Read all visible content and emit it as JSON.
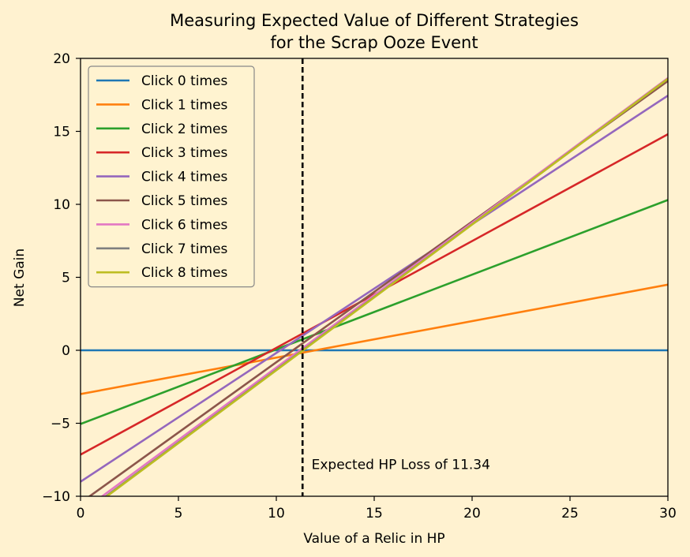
{
  "chart_data": {
    "type": "line",
    "title_line1": "Measuring Expected Value of Different Strategies",
    "title_line2": "for the Scrap Ooze Event",
    "xlabel": "Value of a Relic in HP",
    "ylabel": "Net Gain",
    "xlim": [
      0,
      30
    ],
    "ylim": [
      -10,
      20
    ],
    "xticks": [
      0,
      5,
      10,
      15,
      20,
      25,
      30
    ],
    "yticks": [
      -10,
      -5,
      0,
      5,
      10,
      15,
      20
    ],
    "xtick_labels": [
      "0",
      "5",
      "10",
      "15",
      "20",
      "25",
      "30"
    ],
    "ytick_labels": [
      "−10",
      "−5",
      "0",
      "5",
      "10",
      "15",
      "20"
    ],
    "grid": false,
    "legend_position": "upper-left",
    "series": [
      {
        "name": "Click 0 times",
        "color": "#1f77b4",
        "x": [
          0,
          30
        ],
        "y": [
          0,
          0
        ]
      },
      {
        "name": "Click 1 times",
        "color": "#ff7f0e",
        "x": [
          0,
          30
        ],
        "y": [
          -3,
          4.5
        ]
      },
      {
        "name": "Click 2 times",
        "color": "#2ca02c",
        "x": [
          0,
          30
        ],
        "y": [
          -5.05,
          10.3
        ]
      },
      {
        "name": "Click 3 times",
        "color": "#d62728",
        "x": [
          0,
          30
        ],
        "y": [
          -7.15,
          14.8
        ]
      },
      {
        "name": "Click 4 times",
        "color": "#9467bd",
        "x": [
          0,
          30
        ],
        "y": [
          -9.0,
          17.45
        ]
      },
      {
        "name": "Click 5 times",
        "color": "#8c564b",
        "x": [
          0,
          30
        ],
        "y": [
          -10.45,
          18.45
        ]
      },
      {
        "name": "Click 6 times",
        "color": "#e377c2",
        "x": [
          0,
          30
        ],
        "y": [
          -11.1,
          18.65
        ]
      },
      {
        "name": "Click 7 times",
        "color": "#7f7f7f",
        "x": [
          0,
          30
        ],
        "y": [
          -11.3,
          18.6
        ]
      },
      {
        "name": "Click 8 times",
        "color": "#bcbd22",
        "x": [
          0,
          30
        ],
        "y": [
          -11.35,
          18.6
        ]
      }
    ],
    "vline": {
      "x": 11.34,
      "style": "dashed",
      "color": "#000000"
    },
    "annotation": {
      "text": "Expected HP Loss of 11.34",
      "x": 11.8,
      "y": -7.8
    }
  }
}
